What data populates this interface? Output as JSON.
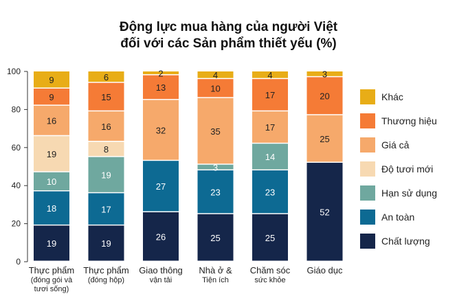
{
  "chart_data": {
    "type": "bar",
    "stacked": true,
    "title_lines": [
      "Động lực mua hàng của người Việt",
      "đối với các Sản phẩm thiết yếu (%)"
    ],
    "categories": [
      [
        "Thực phẩm",
        "(đóng gói và",
        "tươi sống)"
      ],
      [
        "Thực phẩm",
        "(đóng hộp)"
      ],
      [
        "Giao thông",
        "vận tải"
      ],
      [
        "Nhà ở &",
        "Tiện ích"
      ],
      [
        "Chăm sóc",
        "sức khỏe"
      ],
      [
        "Giáo dục"
      ]
    ],
    "ylim": [
      0,
      100
    ],
    "yticks": [
      0,
      20,
      40,
      60,
      80,
      100
    ],
    "grid": false,
    "legend_position": "right",
    "series": [
      {
        "name": "Chất lượng",
        "color": "#15264a",
        "values": [
          19,
          19,
          26,
          25,
          25,
          52
        ]
      },
      {
        "name": "An toàn",
        "color": "#0d6a93",
        "values": [
          18,
          17,
          27,
          23,
          23,
          0
        ]
      },
      {
        "name": "Hạn sử dụng",
        "color": "#6fa89f",
        "values": [
          10,
          19,
          0,
          3,
          14,
          0
        ]
      },
      {
        "name": "Độ tươi mới",
        "color": "#f7d9b2",
        "values": [
          19,
          8,
          0,
          0,
          0,
          0
        ]
      },
      {
        "name": "Giá cả",
        "color": "#f6a96b",
        "values": [
          16,
          16,
          32,
          35,
          17,
          25
        ]
      },
      {
        "name": "Thương hiệu",
        "color": "#f57b36",
        "values": [
          9,
          15,
          13,
          10,
          17,
          20
        ]
      },
      {
        "name": "Khác",
        "color": "#e8ad17",
        "values": [
          9,
          6,
          2,
          4,
          4,
          3
        ]
      }
    ]
  }
}
